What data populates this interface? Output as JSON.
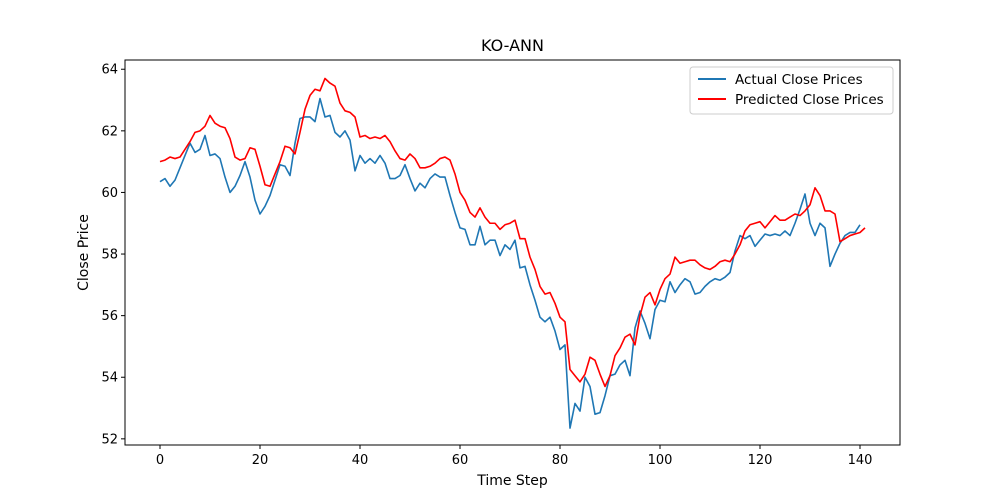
{
  "chart_data": {
    "type": "line",
    "title": "KO-ANN",
    "xlabel": "Time Step",
    "ylabel": "Close Price",
    "xlim": [
      -7,
      148
    ],
    "ylim": [
      51.8,
      64.3
    ],
    "xticks": [
      0,
      20,
      40,
      60,
      80,
      100,
      120,
      140
    ],
    "yticks": [
      52,
      54,
      56,
      58,
      60,
      62,
      64
    ],
    "grid": false,
    "legend": "top-right",
    "series": [
      {
        "name": "Actual Close Prices",
        "color": "#1f77b4",
        "values": [
          60.35,
          60.45,
          60.2,
          60.4,
          60.8,
          61.2,
          61.6,
          61.3,
          61.4,
          61.85,
          61.2,
          61.25,
          61.1,
          60.5,
          60.0,
          60.2,
          60.55,
          61.0,
          60.5,
          59.75,
          59.3,
          59.55,
          59.9,
          60.4,
          60.9,
          60.85,
          60.55,
          61.6,
          62.4,
          62.45,
          62.45,
          62.3,
          63.05,
          62.45,
          62.5,
          61.95,
          61.8,
          62.0,
          61.7,
          60.7,
          61.2,
          60.95,
          61.1,
          60.95,
          61.2,
          60.95,
          60.45,
          60.45,
          60.55,
          60.9,
          60.45,
          60.05,
          60.3,
          60.15,
          60.45,
          60.6,
          60.5,
          60.5,
          59.9,
          59.35,
          58.85,
          58.8,
          58.3,
          58.3,
          58.9,
          58.3,
          58.45,
          58.45,
          57.95,
          58.3,
          58.15,
          58.45,
          57.55,
          57.6,
          57.0,
          56.5,
          55.95,
          55.8,
          55.95,
          55.5,
          54.9,
          55.05,
          52.35,
          53.15,
          52.9,
          54.0,
          53.7,
          52.8,
          52.85,
          53.4,
          54.05,
          54.1,
          54.4,
          54.55,
          54.05,
          55.6,
          56.15,
          55.75,
          55.25,
          56.2,
          56.5,
          56.45,
          57.1,
          56.75,
          57.0,
          57.2,
          57.1,
          56.7,
          56.75,
          56.95,
          57.1,
          57.2,
          57.15,
          57.25,
          57.4,
          58.1,
          58.6,
          58.5,
          58.6,
          58.25,
          58.45,
          58.65,
          58.6,
          58.65,
          58.6,
          58.75,
          58.6,
          59.0,
          59.45,
          59.95,
          59.0,
          58.6,
          59.0,
          58.85,
          57.6,
          58.0,
          58.35,
          58.6,
          58.7,
          58.7,
          58.95
        ]
      },
      {
        "name": "Predicted Close Prices",
        "color": "#ff0000",
        "values": [
          61.0,
          61.05,
          61.15,
          61.1,
          61.15,
          61.4,
          61.65,
          61.95,
          62.0,
          62.15,
          62.5,
          62.25,
          62.15,
          62.1,
          61.75,
          61.15,
          61.05,
          61.1,
          61.45,
          61.4,
          60.85,
          60.25,
          60.2,
          60.6,
          61.0,
          61.5,
          61.45,
          61.25,
          61.95,
          62.7,
          63.15,
          63.35,
          63.3,
          63.7,
          63.55,
          63.45,
          62.9,
          62.65,
          62.6,
          62.45,
          61.8,
          61.85,
          61.75,
          61.8,
          61.75,
          61.85,
          61.65,
          61.35,
          61.1,
          61.05,
          61.25,
          61.1,
          60.8,
          60.8,
          60.85,
          60.95,
          61.1,
          61.15,
          61.05,
          60.6,
          60.0,
          59.75,
          59.35,
          59.2,
          59.5,
          59.2,
          59.0,
          59.0,
          58.8,
          58.95,
          59.0,
          59.1,
          58.5,
          58.5,
          57.9,
          57.5,
          56.95,
          56.7,
          56.75,
          56.4,
          55.95,
          55.8,
          54.25,
          54.05,
          53.85,
          54.1,
          54.65,
          54.55,
          54.1,
          53.7,
          54.05,
          54.7,
          54.95,
          55.3,
          55.4,
          55.05,
          56.0,
          56.6,
          56.75,
          56.35,
          56.85,
          57.2,
          57.35,
          57.9,
          57.7,
          57.75,
          57.8,
          57.8,
          57.65,
          57.55,
          57.5,
          57.6,
          57.75,
          57.8,
          57.75,
          58.0,
          58.3,
          58.75,
          58.95,
          59.0,
          59.05,
          58.85,
          59.05,
          59.25,
          59.1,
          59.1,
          59.2,
          59.3,
          59.25,
          59.4,
          59.6,
          60.15,
          59.9,
          59.4,
          59.4,
          59.3,
          58.4,
          58.5,
          58.6,
          58.65,
          58.7,
          58.85
        ]
      }
    ]
  }
}
